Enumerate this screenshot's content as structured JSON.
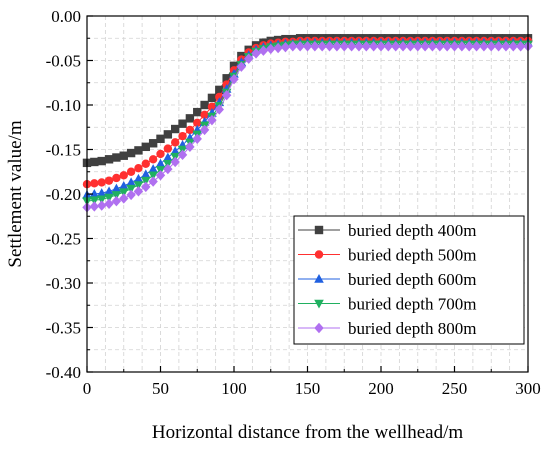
{
  "chart_data": {
    "type": "line",
    "title": "",
    "xlabel": "Horizontal distance from the wellhead/m",
    "ylabel": "Settlement value/m",
    "xlim": [
      0,
      300
    ],
    "ylim": [
      -0.4,
      0.0
    ],
    "xticks": [
      0,
      50,
      100,
      150,
      200,
      250,
      300
    ],
    "xtick_labels": [
      "0",
      "50",
      "100",
      "150",
      "200",
      "250",
      "300"
    ],
    "yticks": [
      0.0,
      -0.05,
      -0.1,
      -0.15,
      -0.2,
      -0.25,
      -0.3,
      -0.35,
      -0.4
    ],
    "ytick_labels": [
      "0.00",
      "-0.05",
      "-0.10",
      "-0.15",
      "-0.20",
      "-0.25",
      "-0.30",
      "-0.35",
      "-0.40"
    ],
    "grid": true,
    "legend_position": "bottom-right",
    "x": [
      0,
      5,
      10,
      15,
      20,
      25,
      30,
      35,
      40,
      45,
      50,
      55,
      60,
      65,
      70,
      75,
      80,
      85,
      90,
      95,
      100,
      105,
      110,
      115,
      120,
      125,
      130,
      135,
      140,
      145,
      150,
      155,
      160,
      165,
      170,
      175,
      180,
      185,
      190,
      195,
      200,
      205,
      210,
      215,
      220,
      225,
      230,
      235,
      240,
      245,
      250,
      255,
      260,
      265,
      270,
      275,
      280,
      285,
      290,
      295,
      300
    ],
    "series": [
      {
        "name": "buried depth 400m",
        "color": "#404040",
        "marker": "square",
        "values": [
          -0.165,
          -0.164,
          -0.163,
          -0.161,
          -0.159,
          -0.157,
          -0.154,
          -0.151,
          -0.147,
          -0.143,
          -0.138,
          -0.133,
          -0.127,
          -0.121,
          -0.115,
          -0.108,
          -0.1,
          -0.092,
          -0.083,
          -0.07,
          -0.056,
          -0.045,
          -0.038,
          -0.033,
          -0.03,
          -0.028,
          -0.027,
          -0.026,
          -0.026,
          -0.025,
          -0.025,
          -0.025,
          -0.025,
          -0.025,
          -0.025,
          -0.025,
          -0.025,
          -0.025,
          -0.025,
          -0.025,
          -0.025,
          -0.025,
          -0.025,
          -0.025,
          -0.025,
          -0.025,
          -0.025,
          -0.025,
          -0.025,
          -0.025,
          -0.025,
          -0.025,
          -0.025,
          -0.025,
          -0.025,
          -0.025,
          -0.025,
          -0.025,
          -0.025,
          -0.025,
          -0.025
        ]
      },
      {
        "name": "buried depth 500m",
        "color": "#ff3030",
        "marker": "circle",
        "values": [
          -0.189,
          -0.188,
          -0.187,
          -0.185,
          -0.182,
          -0.179,
          -0.175,
          -0.171,
          -0.166,
          -0.161,
          -0.155,
          -0.149,
          -0.142,
          -0.135,
          -0.128,
          -0.12,
          -0.111,
          -0.102,
          -0.091,
          -0.077,
          -0.061,
          -0.049,
          -0.041,
          -0.036,
          -0.033,
          -0.031,
          -0.03,
          -0.029,
          -0.029,
          -0.028,
          -0.028,
          -0.028,
          -0.028,
          -0.028,
          -0.028,
          -0.028,
          -0.028,
          -0.028,
          -0.028,
          -0.028,
          -0.028,
          -0.028,
          -0.028,
          -0.028,
          -0.028,
          -0.028,
          -0.028,
          -0.028,
          -0.028,
          -0.028,
          -0.028,
          -0.028,
          -0.028,
          -0.028,
          -0.028,
          -0.028,
          -0.028,
          -0.028,
          -0.028,
          -0.028,
          -0.028
        ]
      },
      {
        "name": "buried depth 600m",
        "color": "#2060e0",
        "marker": "triangle-up",
        "values": [
          -0.201,
          -0.2,
          -0.199,
          -0.197,
          -0.194,
          -0.191,
          -0.187,
          -0.183,
          -0.178,
          -0.172,
          -0.166,
          -0.159,
          -0.152,
          -0.145,
          -0.137,
          -0.128,
          -0.119,
          -0.109,
          -0.097,
          -0.082,
          -0.065,
          -0.052,
          -0.044,
          -0.038,
          -0.035,
          -0.033,
          -0.032,
          -0.031,
          -0.031,
          -0.03,
          -0.03,
          -0.03,
          -0.03,
          -0.03,
          -0.03,
          -0.03,
          -0.03,
          -0.03,
          -0.03,
          -0.03,
          -0.03,
          -0.03,
          -0.03,
          -0.03,
          -0.03,
          -0.03,
          -0.03,
          -0.03,
          -0.03,
          -0.03,
          -0.03,
          -0.03,
          -0.03,
          -0.03,
          -0.03,
          -0.03,
          -0.03,
          -0.03,
          -0.03,
          -0.03,
          -0.03
        ]
      },
      {
        "name": "buried depth 700m",
        "color": "#20b060",
        "marker": "triangle-down",
        "values": [
          -0.208,
          -0.207,
          -0.206,
          -0.204,
          -0.201,
          -0.198,
          -0.194,
          -0.19,
          -0.185,
          -0.179,
          -0.173,
          -0.166,
          -0.158,
          -0.15,
          -0.142,
          -0.133,
          -0.123,
          -0.113,
          -0.101,
          -0.086,
          -0.068,
          -0.055,
          -0.046,
          -0.04,
          -0.037,
          -0.035,
          -0.034,
          -0.033,
          -0.032,
          -0.032,
          -0.032,
          -0.032,
          -0.032,
          -0.032,
          -0.032,
          -0.032,
          -0.032,
          -0.032,
          -0.032,
          -0.032,
          -0.032,
          -0.032,
          -0.032,
          -0.032,
          -0.032,
          -0.032,
          -0.032,
          -0.032,
          -0.032,
          -0.032,
          -0.032,
          -0.032,
          -0.032,
          -0.032,
          -0.032,
          -0.032,
          -0.032,
          -0.032,
          -0.032,
          -0.032,
          -0.032
        ]
      },
      {
        "name": "buried depth 800m",
        "color": "#b070f0",
        "marker": "diamond",
        "values": [
          -0.215,
          -0.214,
          -0.213,
          -0.211,
          -0.208,
          -0.205,
          -0.201,
          -0.197,
          -0.192,
          -0.186,
          -0.179,
          -0.172,
          -0.164,
          -0.156,
          -0.147,
          -0.138,
          -0.128,
          -0.117,
          -0.105,
          -0.089,
          -0.071,
          -0.057,
          -0.048,
          -0.042,
          -0.039,
          -0.037,
          -0.036,
          -0.035,
          -0.034,
          -0.034,
          -0.034,
          -0.034,
          -0.034,
          -0.034,
          -0.034,
          -0.034,
          -0.034,
          -0.034,
          -0.034,
          -0.034,
          -0.034,
          -0.034,
          -0.034,
          -0.034,
          -0.034,
          -0.034,
          -0.034,
          -0.034,
          -0.034,
          -0.034,
          -0.034,
          -0.034,
          -0.034,
          -0.034,
          -0.034,
          -0.034,
          -0.034,
          -0.034,
          -0.034,
          -0.034,
          -0.034
        ]
      }
    ]
  }
}
